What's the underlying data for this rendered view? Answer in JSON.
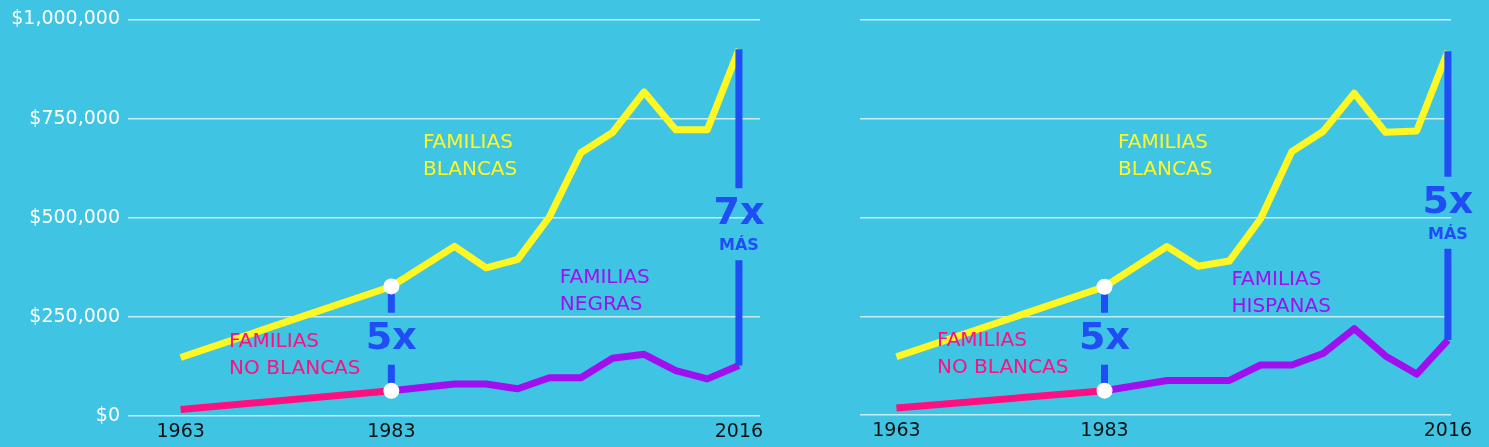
{
  "chart_data": [
    {
      "type": "line",
      "xlim": [
        1958,
        2018
      ],
      "xticks": [
        1963,
        1983,
        2016
      ],
      "ylim": [
        0,
        1000000
      ],
      "yticks": [
        {
          "value": 0,
          "label": "$0"
        },
        {
          "value": 250000,
          "label": "$250,000"
        },
        {
          "value": 500000,
          "label": "$500,000"
        },
        {
          "value": 750000,
          "label": "$750,000"
        },
        {
          "value": 1000000,
          "label": "$1,000,000"
        }
      ],
      "grid": "y",
      "legend": false,
      "series": [
        {
          "name": "FAMILIAS BLANCAS",
          "color": "#fff724",
          "x": [
            1963,
            1983,
            1989,
            1992,
            1995,
            1998,
            2001,
            2004,
            2007,
            2010,
            2013,
            2016
          ],
          "values": [
            148000,
            327000,
            428000,
            374000,
            395000,
            502000,
            664000,
            715000,
            817000,
            722000,
            722000,
            925000
          ]
        },
        {
          "name": "FAMILIAS NO BLANCAS",
          "color": "#ff0f80",
          "x": [
            1963,
            1983
          ],
          "values": [
            17000,
            64000
          ]
        },
        {
          "name": "FAMILIAS NEGRAS",
          "color": "#a00ff0",
          "x": [
            1983,
            1989,
            1992,
            1995,
            1998,
            2001,
            2004,
            2007,
            2010,
            2013,
            2016
          ],
          "values": [
            64000,
            81000,
            81000,
            69000,
            97000,
            97000,
            146000,
            156000,
            115000,
            94000,
            128000
          ]
        }
      ],
      "annotations": [
        "5x",
        "7x",
        "MÁS"
      ]
    },
    {
      "type": "line",
      "xlim": [
        1959.5,
        2016.3
      ],
      "xticks": [
        1963,
        1983,
        2016
      ],
      "ylim": [
        0,
        1000000
      ],
      "yticks": [
        0,
        250000,
        500000,
        750000,
        1000000
      ],
      "grid": "y",
      "legend": false,
      "tick_labels": "x",
      "series": [
        {
          "name": "FAMILIAS BLANCAS",
          "color": "#fff724",
          "x": [
            1963,
            1983,
            1989,
            1992,
            1995,
            1998,
            2001,
            2004,
            2007,
            2010,
            2013,
            2016
          ],
          "values": [
            148000,
            325000,
            427000,
            377000,
            390000,
            497000,
            667000,
            718000,
            815000,
            716000,
            719000,
            921000
          ]
        },
        {
          "name": "FAMILIAS NO BLANCAS",
          "color": "#ff0f80",
          "x": [
            1963,
            1983
          ],
          "values": [
            18000,
            62000
          ]
        },
        {
          "name": "FAMILIAS HISPANAS",
          "color": "#a00ff0",
          "x": [
            1983,
            1989,
            1992,
            1995,
            1998,
            2001,
            2004,
            2007,
            2010,
            2013,
            2016
          ],
          "values": [
            62000,
            88000,
            88000,
            88000,
            127000,
            127000,
            156000,
            219000,
            150000,
            104000,
            190000
          ]
        }
      ],
      "annotations": [
        "5x",
        "5x",
        "MÁS"
      ]
    }
  ]
}
